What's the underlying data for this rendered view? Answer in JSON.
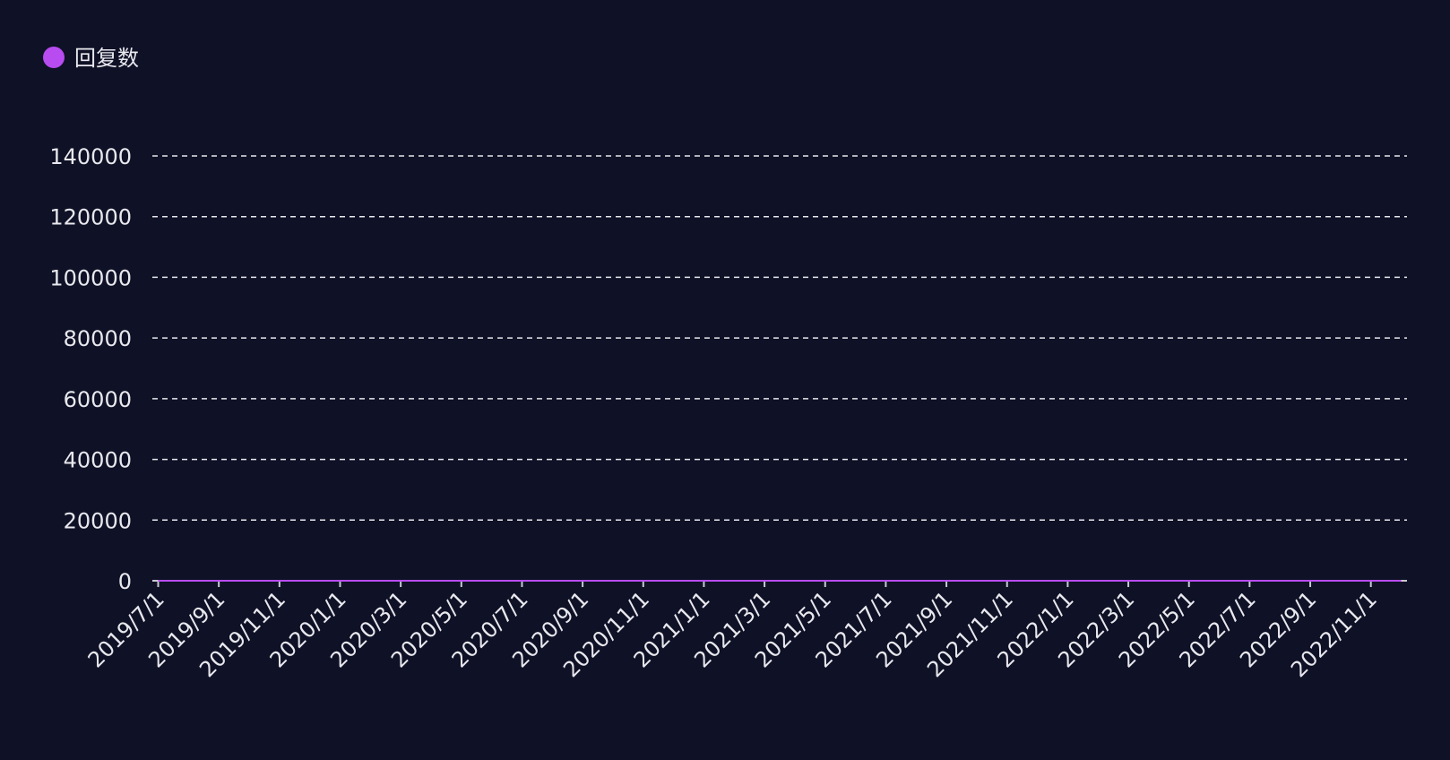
{
  "chart_data": {
    "type": "line",
    "categories": [
      "2019/7/1",
      null,
      "2019/9/1",
      null,
      "2019/11/1",
      null,
      "2020/1/1",
      null,
      "2020/3/1",
      null,
      "2020/5/1",
      null,
      "2020/7/1",
      null,
      "2020/9/1",
      null,
      "2020/11/1",
      null,
      "2021/1/1",
      null,
      "2021/3/1",
      null,
      "2021/5/1",
      null,
      "2021/7/1",
      null,
      "2021/9/1",
      null,
      "2021/11/1",
      null,
      "2022/1/1",
      null,
      "2022/3/1",
      null,
      "2022/5/1",
      null,
      "2022/7/1",
      null,
      "2022/9/1",
      null,
      "2022/11/1",
      null
    ],
    "series": [
      {
        "name": "回复数",
        "color": "#b84cf0",
        "values": [
          0,
          0,
          0,
          0,
          0,
          0,
          0,
          0,
          0,
          0,
          0,
          0,
          0,
          0,
          0,
          0,
          0,
          0,
          0,
          0,
          0,
          0,
          0,
          0,
          0,
          0,
          0,
          0,
          0,
          0,
          0,
          0,
          0,
          0,
          0,
          0,
          0,
          0,
          0,
          0,
          0,
          0
        ]
      }
    ],
    "ylim": [
      0,
      140000
    ],
    "yticks": [
      0,
      20000,
      40000,
      60000,
      80000,
      100000,
      120000,
      140000
    ],
    "grid": true,
    "legend": "top-left"
  }
}
